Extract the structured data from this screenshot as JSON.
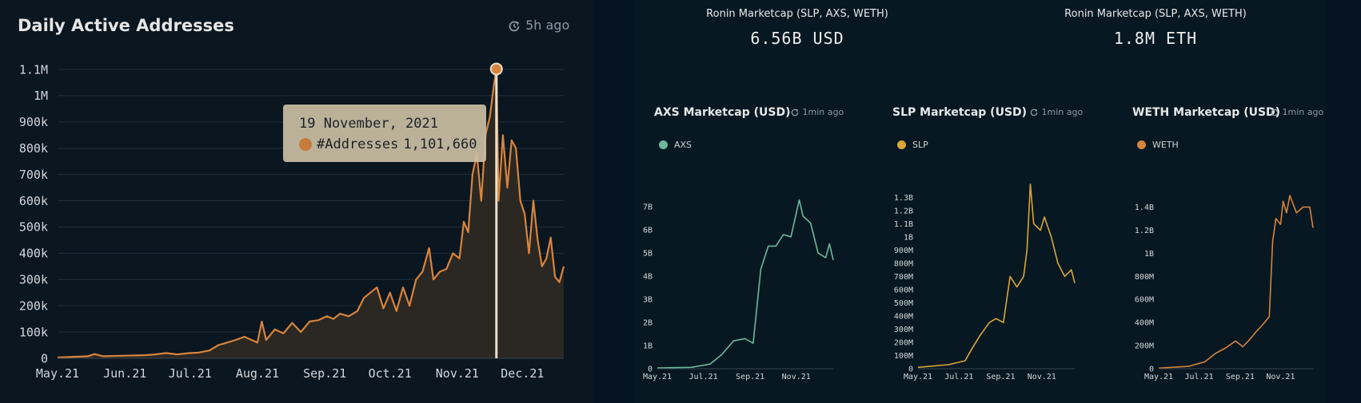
{
  "main_chart": {
    "title": "Daily Active Addresses",
    "updated": "5h ago",
    "tooltip": {
      "date": "19 November, 2021",
      "series": "#Addresses",
      "value": "1,101,660"
    }
  },
  "stats": [
    {
      "label": "Ronin Marketcap (SLP, AXS, WETH)",
      "value": "6.56B USD"
    },
    {
      "label": "Ronin Marketcap (SLP, AXS, WETH)",
      "value": "1.8M ETH"
    }
  ],
  "mini_charts": [
    {
      "title": "AXS Marketcap (USD)",
      "updated": "1min ago",
      "legend": "AXS"
    },
    {
      "title": "SLP Marketcap (USD)",
      "updated": "1min ago",
      "legend": "SLP"
    },
    {
      "title": "WETH Marketcap (USD)",
      "updated": "1min ago",
      "legend": "WETH"
    }
  ],
  "colors": {
    "addresses": "#d7843d",
    "axs": "#6cb89a",
    "slp": "#d9a736",
    "weth": "#d7843d",
    "background": "#0a1620"
  },
  "icons": {
    "refresh": "refresh-clock-icon"
  },
  "chart_data": [
    {
      "type": "area",
      "title": "Daily Active Addresses",
      "x_ticks": [
        "May.21",
        "Jun.21",
        "Jul.21",
        "Aug.21",
        "Sep.21",
        "Oct.21",
        "Nov.21",
        "Dec.21"
      ],
      "y_ticks": [
        "0",
        "100k",
        "200k",
        "300k",
        "400k",
        "500k",
        "600k",
        "700k",
        "800k",
        "900k",
        "1M",
        "1.1M"
      ],
      "ylim": [
        0,
        1100000
      ],
      "grid": true,
      "highlight": {
        "x": "2021-11-19",
        "y": 1101660
      },
      "series": [
        {
          "name": "#Addresses",
          "points": [
            [
              "2021-05-01",
              3000
            ],
            [
              "2021-05-15",
              8000
            ],
            [
              "2021-05-18",
              16000
            ],
            [
              "2021-05-22",
              8000
            ],
            [
              "2021-06-01",
              10000
            ],
            [
              "2021-06-10",
              12000
            ],
            [
              "2021-06-15",
              15000
            ],
            [
              "2021-06-20",
              20000
            ],
            [
              "2021-06-25",
              15000
            ],
            [
              "2021-07-01",
              20000
            ],
            [
              "2021-07-05",
              22000
            ],
            [
              "2021-07-10",
              30000
            ],
            [
              "2021-07-14",
              50000
            ],
            [
              "2021-07-18",
              60000
            ],
            [
              "2021-07-22",
              70000
            ],
            [
              "2021-07-26",
              82000
            ],
            [
              "2021-08-01",
              60000
            ],
            [
              "2021-08-03",
              140000
            ],
            [
              "2021-08-05",
              70000
            ],
            [
              "2021-08-09",
              110000
            ],
            [
              "2021-08-13",
              95000
            ],
            [
              "2021-08-17",
              135000
            ],
            [
              "2021-08-21",
              100000
            ],
            [
              "2021-08-25",
              140000
            ],
            [
              "2021-08-29",
              145000
            ],
            [
              "2021-09-02",
              160000
            ],
            [
              "2021-09-05",
              150000
            ],
            [
              "2021-09-08",
              170000
            ],
            [
              "2021-09-12",
              160000
            ],
            [
              "2021-09-16",
              180000
            ],
            [
              "2021-09-19",
              230000
            ],
            [
              "2021-09-22",
              250000
            ],
            [
              "2021-09-25",
              270000
            ],
            [
              "2021-09-28",
              190000
            ],
            [
              "2021-10-01",
              250000
            ],
            [
              "2021-10-04",
              180000
            ],
            [
              "2021-10-07",
              270000
            ],
            [
              "2021-10-10",
              200000
            ],
            [
              "2021-10-13",
              300000
            ],
            [
              "2021-10-16",
              330000
            ],
            [
              "2021-10-19",
              420000
            ],
            [
              "2021-10-21",
              300000
            ],
            [
              "2021-10-24",
              330000
            ],
            [
              "2021-10-27",
              340000
            ],
            [
              "2021-10-30",
              400000
            ],
            [
              "2021-11-02",
              380000
            ],
            [
              "2021-11-04",
              520000
            ],
            [
              "2021-11-06",
              480000
            ],
            [
              "2021-11-08",
              700000
            ],
            [
              "2021-11-10",
              780000
            ],
            [
              "2021-11-12",
              600000
            ],
            [
              "2021-11-14",
              850000
            ],
            [
              "2021-11-16",
              920000
            ],
            [
              "2021-11-18",
              1050000
            ],
            [
              "2021-11-19",
              1101660
            ],
            [
              "2021-11-20",
              600000
            ],
            [
              "2021-11-22",
              850000
            ],
            [
              "2021-11-24",
              650000
            ],
            [
              "2021-11-26",
              830000
            ],
            [
              "2021-11-28",
              800000
            ],
            [
              "2021-11-30",
              600000
            ],
            [
              "2021-12-02",
              550000
            ],
            [
              "2021-12-04",
              400000
            ],
            [
              "2021-12-06",
              600000
            ],
            [
              "2021-12-08",
              450000
            ],
            [
              "2021-12-10",
              350000
            ],
            [
              "2021-12-12",
              380000
            ],
            [
              "2021-12-14",
              460000
            ],
            [
              "2021-12-16",
              310000
            ],
            [
              "2021-12-18",
              290000
            ],
            [
              "2021-12-20",
              350000
            ]
          ]
        }
      ]
    },
    {
      "type": "line",
      "title": "AXS Marketcap (USD)",
      "x_ticks": [
        "May.21",
        "Jul.21",
        "Sep.21",
        "Nov.21"
      ],
      "y_ticks": [
        "0",
        "1B",
        "2B",
        "3B",
        "4B",
        "5B",
        "6B",
        "7B"
      ],
      "ylim": [
        0,
        7800000000
      ],
      "series": [
        {
          "name": "AXS",
          "points": [
            [
              "2021-05-01",
              30000000
            ],
            [
              "2021-06-15",
              60000000
            ],
            [
              "2021-07-10",
              200000000
            ],
            [
              "2021-07-25",
              600000000
            ],
            [
              "2021-08-10",
              1200000000
            ],
            [
              "2021-08-25",
              1300000000
            ],
            [
              "2021-09-05",
              1100000000
            ],
            [
              "2021-09-15",
              4300000000
            ],
            [
              "2021-09-25",
              5300000000
            ],
            [
              "2021-10-05",
              5300000000
            ],
            [
              "2021-10-15",
              5800000000
            ],
            [
              "2021-10-25",
              5700000000
            ],
            [
              "2021-11-05",
              7300000000
            ],
            [
              "2021-11-10",
              6600000000
            ],
            [
              "2021-11-20",
              6300000000
            ],
            [
              "2021-11-30",
              5000000000
            ],
            [
              "2021-12-10",
              4800000000
            ],
            [
              "2021-12-15",
              5400000000
            ],
            [
              "2021-12-20",
              4700000000
            ]
          ]
        }
      ]
    },
    {
      "type": "line",
      "title": "SLP Marketcap (USD)",
      "x_ticks": [
        "May.21",
        "Jul.21",
        "Sep.21",
        "Nov.21"
      ],
      "y_ticks": [
        "0",
        "100M",
        "200M",
        "300M",
        "400M",
        "500M",
        "600M",
        "700M",
        "800M",
        "900M",
        "1B",
        "1.1B",
        "1.2B",
        "1.3B"
      ],
      "ylim": [
        0,
        1350000000
      ],
      "series": [
        {
          "name": "SLP",
          "points": [
            [
              "2021-05-01",
              10000000
            ],
            [
              "2021-06-15",
              30000000
            ],
            [
              "2021-07-10",
              60000000
            ],
            [
              "2021-07-20",
              150000000
            ],
            [
              "2021-08-01",
              250000000
            ],
            [
              "2021-08-15",
              350000000
            ],
            [
              "2021-08-25",
              380000000
            ],
            [
              "2021-09-05",
              350000000
            ],
            [
              "2021-09-15",
              700000000
            ],
            [
              "2021-09-25",
              620000000
            ],
            [
              "2021-10-05",
              700000000
            ],
            [
              "2021-10-10",
              900000000
            ],
            [
              "2021-10-15",
              1400000000
            ],
            [
              "2021-10-20",
              1100000000
            ],
            [
              "2021-10-30",
              1050000000
            ],
            [
              "2021-11-05",
              1150000000
            ],
            [
              "2021-11-15",
              1000000000
            ],
            [
              "2021-11-25",
              800000000
            ],
            [
              "2021-12-05",
              700000000
            ],
            [
              "2021-12-15",
              750000000
            ],
            [
              "2021-12-20",
              650000000
            ]
          ]
        }
      ]
    },
    {
      "type": "line",
      "title": "WETH Marketcap (USD)",
      "x_ticks": [
        "May.21",
        "Jul.21",
        "Sep.21",
        "Nov.21"
      ],
      "y_ticks": [
        "0",
        "200M",
        "400M",
        "600M",
        "800M",
        "1B",
        "1.2B",
        "1.4B"
      ],
      "ylim": [
        0,
        1500000000
      ],
      "series": [
        {
          "name": "WETH",
          "points": [
            [
              "2021-05-01",
              5000000
            ],
            [
              "2021-06-15",
              20000000
            ],
            [
              "2021-07-10",
              60000000
            ],
            [
              "2021-07-25",
              130000000
            ],
            [
              "2021-08-10",
              180000000
            ],
            [
              "2021-08-25",
              240000000
            ],
            [
              "2021-09-05",
              190000000
            ],
            [
              "2021-09-15",
              250000000
            ],
            [
              "2021-09-25",
              320000000
            ],
            [
              "2021-10-05",
              380000000
            ],
            [
              "2021-10-15",
              450000000
            ],
            [
              "2021-10-20",
              1100000000
            ],
            [
              "2021-10-25",
              1300000000
            ],
            [
              "2021-11-01",
              1250000000
            ],
            [
              "2021-11-05",
              1450000000
            ],
            [
              "2021-11-10",
              1350000000
            ],
            [
              "2021-11-15",
              1500000000
            ],
            [
              "2021-11-25",
              1350000000
            ],
            [
              "2021-12-05",
              1400000000
            ],
            [
              "2021-12-15",
              1400000000
            ],
            [
              "2021-12-20",
              1220000000
            ]
          ]
        }
      ]
    }
  ]
}
